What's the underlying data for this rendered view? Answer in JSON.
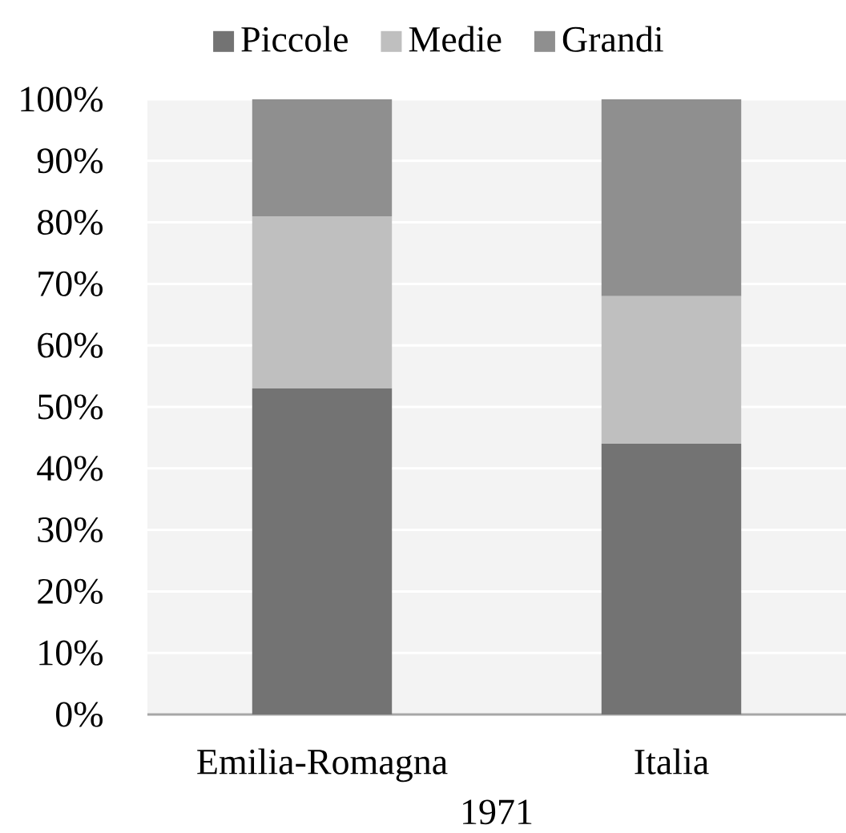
{
  "chart_data": {
    "type": "bar",
    "stacked": true,
    "categories": [
      "Emilia-Romagna",
      "Italia"
    ],
    "series": [
      {
        "name": "Piccole",
        "color": "#737373",
        "values": [
          53,
          44
        ]
      },
      {
        "name": "Medie",
        "color": "#bfbfbf",
        "values": [
          28,
          24
        ]
      },
      {
        "name": "Grandi",
        "color": "#8f8f8f",
        "values": [
          19,
          32
        ]
      }
    ],
    "xlabel": "1971",
    "ylim": [
      0,
      100
    ],
    "yticks": [
      {
        "value": 0,
        "label": "0%"
      },
      {
        "value": 10,
        "label": "10%"
      },
      {
        "value": 20,
        "label": "20%"
      },
      {
        "value": 30,
        "label": "30%"
      },
      {
        "value": 40,
        "label": "40%"
      },
      {
        "value": 50,
        "label": "50%"
      },
      {
        "value": 60,
        "label": "60%"
      },
      {
        "value": 70,
        "label": "70%"
      },
      {
        "value": 80,
        "label": "80%"
      },
      {
        "value": 90,
        "label": "90%"
      },
      {
        "value": 100,
        "label": "100%"
      }
    ],
    "grid": "y",
    "legend": "top"
  }
}
